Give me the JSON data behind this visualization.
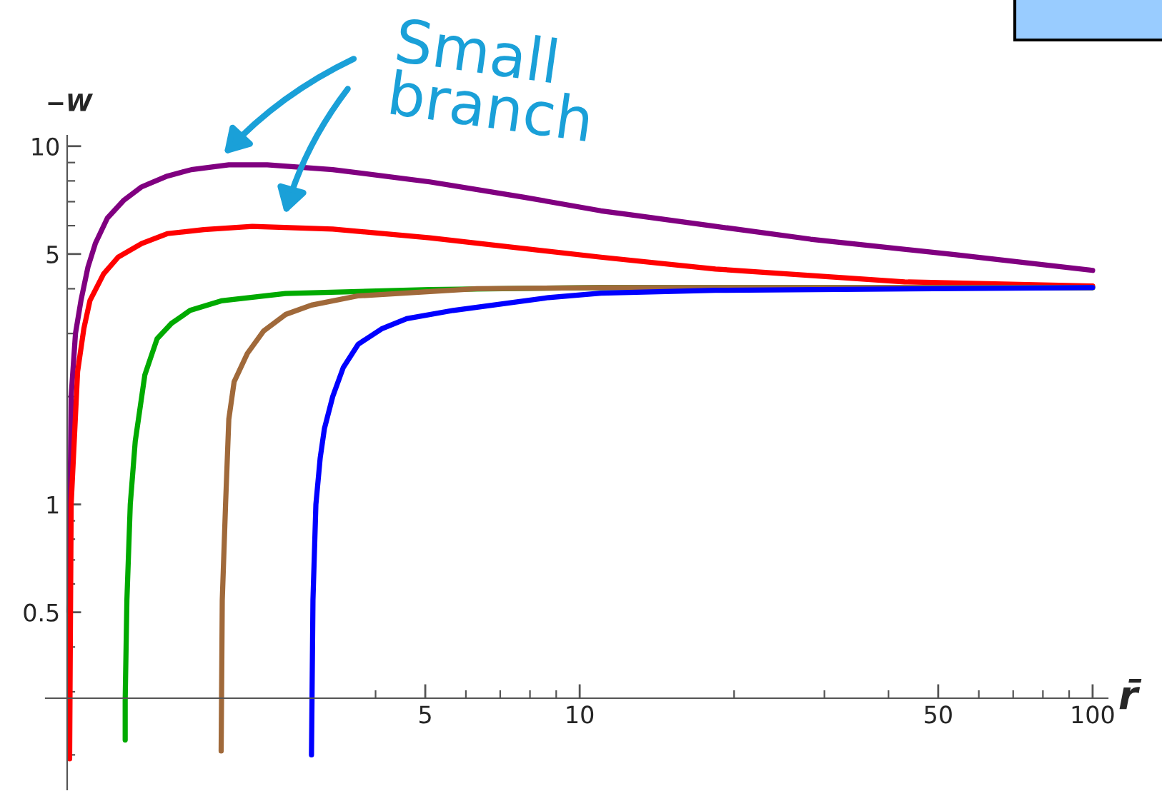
{
  "chart_data": {
    "type": "line",
    "log": "xy",
    "xlabel": "r̄",
    "ylabel": "−W",
    "xlim": [
      0.91,
      107
    ],
    "ylim": [
      0.16,
      10.7
    ],
    "xticks": [
      5,
      10,
      50,
      100
    ],
    "yticks": [
      0.5,
      1,
      5,
      10
    ],
    "grid": false,
    "marker": "none",
    "line_style": "solid",
    "annotations": [
      "Small\nbranch"
    ],
    "series": [
      {
        "color": "#800080",
        "x": [
          1.01,
          1.02,
          1.04,
          1.066,
          1.1,
          1.137,
          1.2,
          1.29,
          1.4,
          1.57,
          1.75,
          2.07,
          2.46,
          3.3,
          5.1,
          7.8,
          11,
          12.5,
          18,
          28.2,
          53.8,
          100
        ],
        "values": [
          0.5,
          2.0,
          3.0,
          3.71,
          4.6,
          5.35,
          6.3,
          7.05,
          7.7,
          8.25,
          8.6,
          8.87,
          8.87,
          8.6,
          7.95,
          7.2,
          6.6,
          6.44,
          6.0,
          5.5,
          4.98,
          4.5
        ]
      },
      {
        "color": "#ff0000",
        "x": [
          1.013,
          1.02,
          1.05,
          1.08,
          1.11,
          1.18,
          1.26,
          1.4,
          1.57,
          1.85,
          2.3,
          3.3,
          5.1,
          11,
          18.4,
          43,
          100
        ],
        "values": [
          0.195,
          1.0,
          2.35,
          3.1,
          3.71,
          4.4,
          4.9,
          5.35,
          5.7,
          5.85,
          5.97,
          5.87,
          5.55,
          4.9,
          4.54,
          4.18,
          4.07
        ]
      },
      {
        "color": "#00aa00",
        "x": [
          1.3,
          1.3,
          1.31,
          1.33,
          1.36,
          1.42,
          1.5,
          1.6,
          1.74,
          2.0,
          2.67,
          5.1,
          11,
          100
        ],
        "values": [
          0.22,
          0.285,
          0.54,
          1.0,
          1.5,
          2.3,
          2.9,
          3.2,
          3.48,
          3.7,
          3.88,
          3.98,
          4.03,
          4.03
        ]
      },
      {
        "color": "#a0693a",
        "x": [
          2.0,
          2.01,
          2.04,
          2.07,
          2.12,
          2.25,
          2.42,
          2.67,
          3.0,
          3.69,
          6.3,
          11,
          100
        ],
        "values": [
          0.205,
          0.54,
          1.0,
          1.73,
          2.2,
          2.64,
          3.05,
          3.39,
          3.6,
          3.82,
          4.0,
          4.03,
          4.03
        ]
      },
      {
        "color": "#0000ff",
        "x": [
          3.0,
          3.02,
          3.06,
          3.12,
          3.18,
          3.3,
          3.46,
          3.7,
          4.11,
          4.6,
          5.67,
          8.7,
          11,
          18.4,
          100
        ],
        "values": [
          0.2,
          0.54,
          1.0,
          1.35,
          1.63,
          2.0,
          2.41,
          2.8,
          3.09,
          3.3,
          3.48,
          3.78,
          3.89,
          3.96,
          4.03
        ]
      }
    ]
  }
}
